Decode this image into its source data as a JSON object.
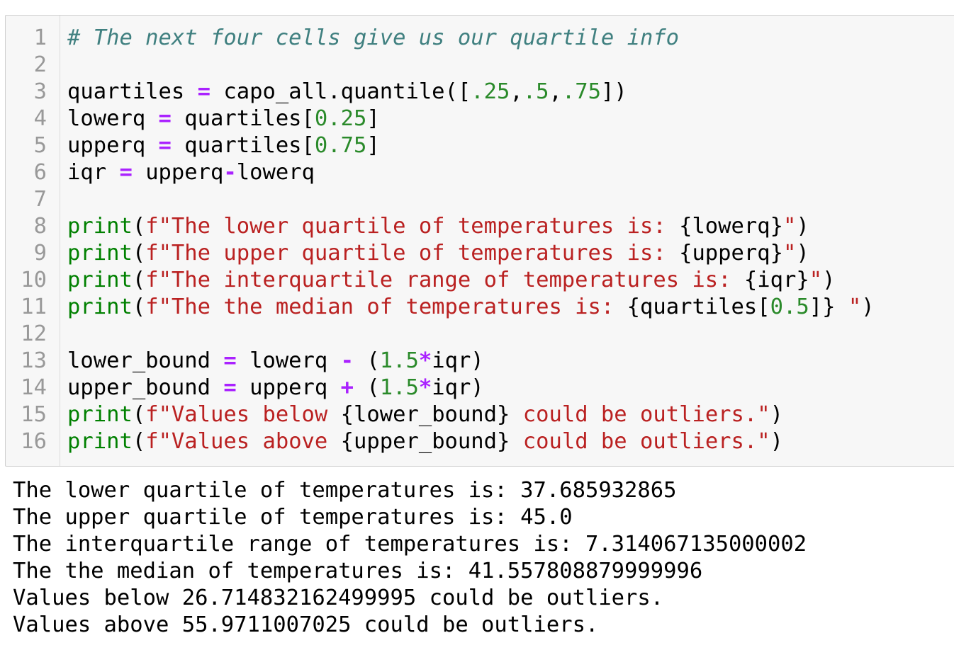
{
  "input_cell": {
    "lines": [
      {
        "num": "1",
        "tokens": [
          {
            "t": "# The next four cells give us our quartile info",
            "c": "cm"
          }
        ]
      },
      {
        "num": "2",
        "tokens": []
      },
      {
        "num": "3",
        "tokens": [
          {
            "t": "quartiles ",
            "c": ""
          },
          {
            "t": "=",
            "c": "op"
          },
          {
            "t": " capo_all.quantile([",
            "c": ""
          },
          {
            "t": ".25",
            "c": "nu"
          },
          {
            "t": ",",
            "c": ""
          },
          {
            "t": ".5",
            "c": "nu"
          },
          {
            "t": ",",
            "c": ""
          },
          {
            "t": ".75",
            "c": "nu"
          },
          {
            "t": "])",
            "c": ""
          }
        ]
      },
      {
        "num": "4",
        "tokens": [
          {
            "t": "lowerq ",
            "c": ""
          },
          {
            "t": "=",
            "c": "op"
          },
          {
            "t": " quartiles[",
            "c": ""
          },
          {
            "t": "0.25",
            "c": "nu"
          },
          {
            "t": "]",
            "c": ""
          }
        ]
      },
      {
        "num": "5",
        "tokens": [
          {
            "t": "upperq ",
            "c": ""
          },
          {
            "t": "=",
            "c": "op"
          },
          {
            "t": " quartiles[",
            "c": ""
          },
          {
            "t": "0.75",
            "c": "nu"
          },
          {
            "t": "]",
            "c": ""
          }
        ]
      },
      {
        "num": "6",
        "tokens": [
          {
            "t": "iqr ",
            "c": ""
          },
          {
            "t": "=",
            "c": "op"
          },
          {
            "t": " upperq",
            "c": ""
          },
          {
            "t": "-",
            "c": "op"
          },
          {
            "t": "lowerq",
            "c": ""
          }
        ]
      },
      {
        "num": "7",
        "tokens": []
      },
      {
        "num": "8",
        "tokens": [
          {
            "t": "print",
            "c": "kw"
          },
          {
            "t": "(",
            "c": ""
          },
          {
            "t": "f\"The lower quartile of temperatures is: ",
            "c": "st"
          },
          {
            "t": "{lowerq}",
            "c": ""
          },
          {
            "t": "\"",
            "c": "st"
          },
          {
            "t": ")",
            "c": ""
          }
        ]
      },
      {
        "num": "9",
        "tokens": [
          {
            "t": "print",
            "c": "kw"
          },
          {
            "t": "(",
            "c": ""
          },
          {
            "t": "f\"The upper quartile of temperatures is: ",
            "c": "st"
          },
          {
            "t": "{upperq}",
            "c": ""
          },
          {
            "t": "\"",
            "c": "st"
          },
          {
            "t": ")",
            "c": ""
          }
        ]
      },
      {
        "num": "10",
        "tokens": [
          {
            "t": "print",
            "c": "kw"
          },
          {
            "t": "(",
            "c": ""
          },
          {
            "t": "f\"The interquartile range of temperatures is: ",
            "c": "st"
          },
          {
            "t": "{iqr}",
            "c": ""
          },
          {
            "t": "\"",
            "c": "st"
          },
          {
            "t": ")",
            "c": ""
          }
        ]
      },
      {
        "num": "11",
        "tokens": [
          {
            "t": "print",
            "c": "kw"
          },
          {
            "t": "(",
            "c": ""
          },
          {
            "t": "f\"The the median of temperatures is: ",
            "c": "st"
          },
          {
            "t": "{quartiles[",
            "c": ""
          },
          {
            "t": "0.5",
            "c": "nu"
          },
          {
            "t": "]}",
            "c": ""
          },
          {
            "t": " \"",
            "c": "st"
          },
          {
            "t": ")",
            "c": ""
          }
        ]
      },
      {
        "num": "12",
        "tokens": []
      },
      {
        "num": "13",
        "tokens": [
          {
            "t": "lower_bound ",
            "c": ""
          },
          {
            "t": "=",
            "c": "op"
          },
          {
            "t": " lowerq ",
            "c": ""
          },
          {
            "t": "-",
            "c": "op"
          },
          {
            "t": " (",
            "c": ""
          },
          {
            "t": "1.5",
            "c": "nu"
          },
          {
            "t": "*",
            "c": "op"
          },
          {
            "t": "iqr)",
            "c": ""
          }
        ]
      },
      {
        "num": "14",
        "tokens": [
          {
            "t": "upper_bound ",
            "c": ""
          },
          {
            "t": "=",
            "c": "op"
          },
          {
            "t": " upperq ",
            "c": ""
          },
          {
            "t": "+",
            "c": "op"
          },
          {
            "t": " (",
            "c": ""
          },
          {
            "t": "1.5",
            "c": "nu"
          },
          {
            "t": "*",
            "c": "op"
          },
          {
            "t": "iqr)",
            "c": ""
          }
        ]
      },
      {
        "num": "15",
        "tokens": [
          {
            "t": "print",
            "c": "kw"
          },
          {
            "t": "(",
            "c": ""
          },
          {
            "t": "f\"Values below ",
            "c": "st"
          },
          {
            "t": "{lower_bound}",
            "c": ""
          },
          {
            "t": " could be outliers.\"",
            "c": "st"
          },
          {
            "t": ")",
            "c": ""
          }
        ]
      },
      {
        "num": "16",
        "tokens": [
          {
            "t": "print",
            "c": "kw"
          },
          {
            "t": "(",
            "c": ""
          },
          {
            "t": "f\"Values above ",
            "c": "st"
          },
          {
            "t": "{upper_bound}",
            "c": ""
          },
          {
            "t": " could be outliers.\"",
            "c": "st"
          },
          {
            "t": ")",
            "c": ""
          }
        ]
      }
    ]
  },
  "output_cell": {
    "lines": [
      "The lower quartile of temperatures is: 37.685932865",
      "The upper quartile of temperatures is: 45.0",
      "The interquartile range of temperatures is: 7.314067135000002",
      "The the median of temperatures is: 41.557808879999996",
      "Values below 26.714832162499995 could be outliers.",
      "Values above 55.9711007025 could be outliers."
    ]
  },
  "colors": {
    "comment": "#408080",
    "operator": "#aa22ff",
    "number": "#2a8a2a",
    "keyword": "#008000",
    "string": "#ba2121",
    "line_number": "#999999",
    "cell_background": "#f7f7f7"
  }
}
